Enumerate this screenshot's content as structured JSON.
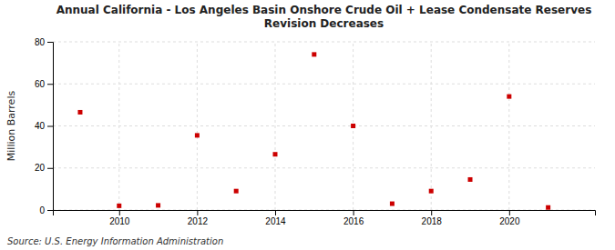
{
  "chart_data": {
    "type": "scatter",
    "title": "Annual California - Los Angeles Basin Onshore Crude Oil + Lease Condensate Reserves\nRevision Decreases",
    "ylabel": "Million Barrels",
    "source": "Source: U.S. Energy Information Administration",
    "x": [
      2009,
      2010,
      2011,
      2012,
      2013,
      2014,
      2015,
      2016,
      2017,
      2018,
      2019,
      2020,
      2021
    ],
    "values": [
      46.5,
      2.0,
      2.2,
      35.5,
      9.0,
      26.5,
      74.0,
      40.0,
      3.0,
      9.0,
      14.5,
      54.0,
      1.2
    ],
    "color": "#cc0000",
    "marker": "square",
    "xlim": [
      2008.3,
      2022.2
    ],
    "ylim": [
      0,
      80
    ],
    "xticks": [
      2010,
      2012,
      2014,
      2016,
      2018,
      2020
    ],
    "yticks": [
      0,
      20,
      40,
      60,
      80
    ],
    "grid": true
  }
}
